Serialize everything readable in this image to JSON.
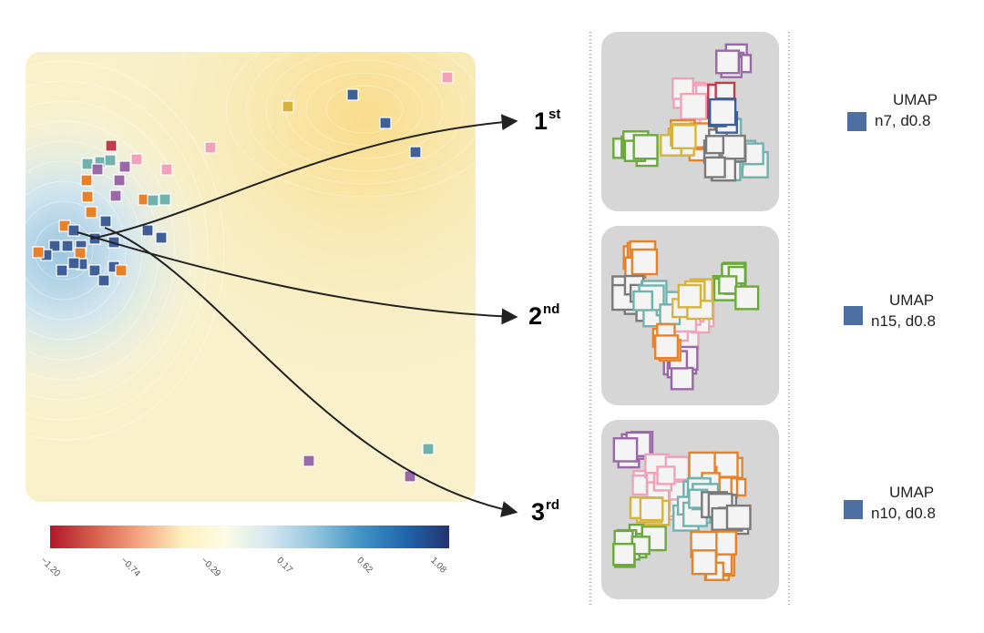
{
  "colorbar": {
    "ticks": [
      "−1.20",
      "−0.74",
      "−0.29",
      "0.17",
      "0.62",
      "1.08"
    ],
    "colors": [
      "#b2182b",
      "#d6604d",
      "#f4a582",
      "#fdf1bf",
      "#fbfbe6",
      "#d1e5f0",
      "#92c5de",
      "#4393c3",
      "#2166ac",
      "#23336e"
    ]
  },
  "ranks": [
    {
      "num": "1",
      "suffix": "st"
    },
    {
      "num": "2",
      "suffix": "nd"
    },
    {
      "num": "3",
      "suffix": "rd"
    }
  ],
  "legend": [
    {
      "name": "UMAP",
      "params": "n7, d0.8",
      "color": "#4e6fa2"
    },
    {
      "name": "UMAP",
      "params": "n15, d0.8",
      "color": "#4e6fa2"
    },
    {
      "name": "UMAP",
      "params": "n10, d0.8",
      "color": "#4e6fa2"
    }
  ],
  "palette": {
    "blue": "#3e5f97",
    "orange": "#e8822a",
    "teal": "#6fb2ae",
    "pink": "#f1a2b9",
    "purple": "#9a68a6",
    "red": "#c23b4a",
    "gold": "#d7b33a",
    "green": "#6aaa3b",
    "gray": "#7a7a7a"
  }
}
